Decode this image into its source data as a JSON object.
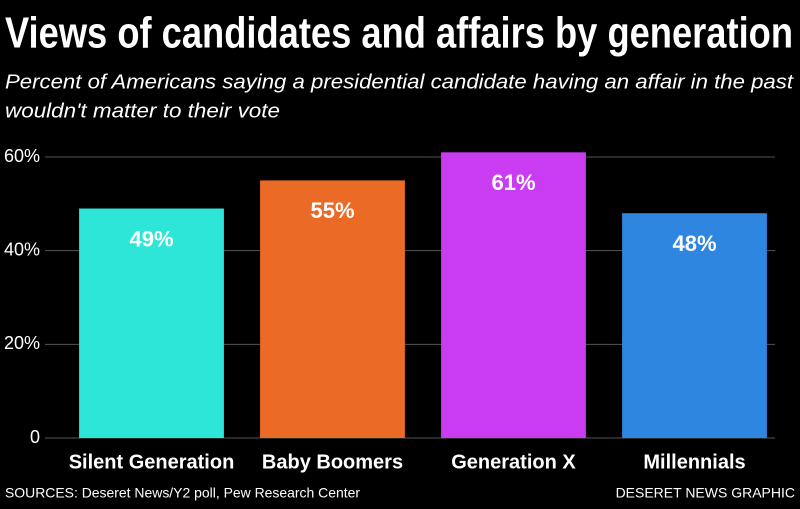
{
  "chart_data": {
    "type": "bar",
    "title": "Views of candidates and affairs by generation",
    "subtitle": [
      "Percent of Americans saying a presidential candidate having an affair in the past",
      "wouldn't matter to their vote"
    ],
    "categories": [
      "Silent Generation",
      "Baby Boomers",
      "Generation X",
      "Millennials"
    ],
    "values": [
      49,
      55,
      61,
      48
    ],
    "value_labels": [
      "49%",
      "55%",
      "61%",
      "48%"
    ],
    "colors": [
      "#2ee6d8",
      "#eb6a26",
      "#c93cf2",
      "#2f86e0"
    ],
    "ylim": [
      0,
      60
    ],
    "yticks": [
      0,
      {
        "value": 20,
        "label": "20%"
      },
      {
        "value": 40,
        "label": "40%"
      },
      {
        "value": 60,
        "label": "60%"
      }
    ],
    "grid": true,
    "source": "SOURCES: Deseret News/Y2 poll, Pew Research Center",
    "credit": "DESERET NEWS GRAPHIC"
  }
}
